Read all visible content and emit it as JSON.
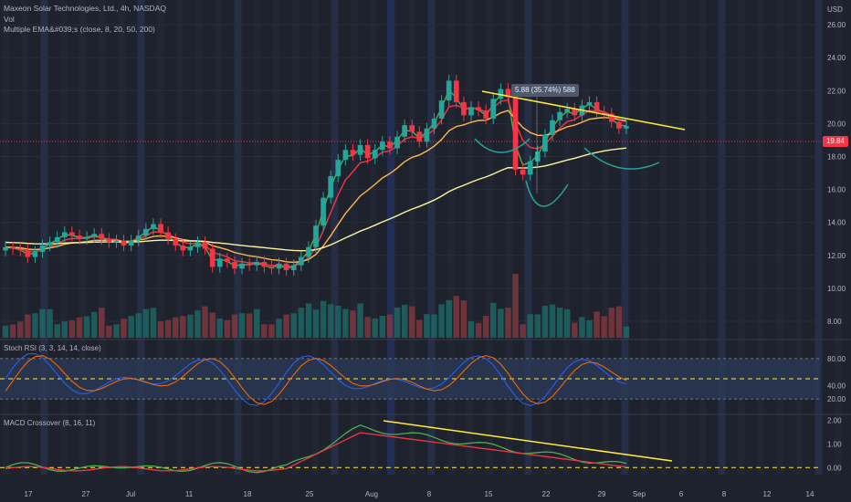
{
  "legend": {
    "title": "Maxeon Solar Technologies, Ltd., 4h, NASDAQ",
    "vol": "Vol",
    "ema": "Multiple EMA&#039;s (close, 8, 20, 50, 200)"
  },
  "panes": {
    "rsi_title": "Stoch RSI (3, 3, 14, 14, close)",
    "macd_title": "MACD Crossover (8, 16, 11)"
  },
  "currency": "USD",
  "last_price_label": "19.84",
  "callout": "5.88 (35.74%) 588",
  "colors": {
    "up": "#26a69a",
    "down": "#f23645",
    "ema8": "#4caf50",
    "ema20": "#f23645",
    "ema50": "#ffb74d",
    "ema200": "#fff59d",
    "trend": "#ffeb3b",
    "curve": "#26a69a"
  },
  "chart_data": [
    {
      "type": "candlestick",
      "title": "Maxeon Solar Technologies, Ltd., 4h, NASDAQ",
      "ylabel": "USD",
      "ylim": [
        7.0,
        27.5
      ],
      "y_ticks": [
        8.0,
        10.0,
        12.0,
        14.0,
        16.0,
        18.0,
        20.0,
        22.0,
        24.0,
        26.0
      ],
      "y_tick_labels": [
        "8.00",
        "10.00",
        "12.00",
        "14.00",
        "16.00",
        "18.00",
        "20.00",
        "22.00",
        "24.00",
        "26.00"
      ],
      "x_tick_labels": [
        "17",
        "27",
        "Jul",
        "11",
        "18",
        "25",
        "Aug",
        "8",
        "15",
        "22",
        "29",
        "Sep",
        "6",
        "8",
        "12",
        "14"
      ],
      "last_price": 19.84,
      "closes": [
        12.5,
        12.4,
        12.3,
        11.9,
        12.2,
        12.6,
        12.8,
        13.1,
        13.4,
        13.2,
        13.0,
        13.1,
        13.3,
        13.0,
        12.8,
        12.9,
        12.6,
        12.9,
        13.2,
        13.6,
        13.9,
        13.4,
        13.0,
        12.6,
        12.3,
        12.5,
        12.8,
        12.4,
        11.3,
        11.8,
        11.6,
        11.2,
        11.5,
        11.4,
        11.6,
        11.3,
        11.2,
        11.5,
        11.1,
        11.4,
        11.9,
        12.5,
        13.8,
        15.5,
        16.8,
        17.8,
        18.4,
        18.1,
        18.7,
        17.9,
        18.4,
        18.9,
        18.5,
        19.2,
        19.9,
        19.5,
        18.9,
        19.7,
        20.3,
        21.4,
        22.6,
        21.3,
        20.5,
        21.0,
        20.8,
        20.3,
        21.5,
        22.1,
        21.6,
        17.2,
        16.9,
        17.7,
        18.3,
        19.3,
        20.2,
        20.7,
        20.9,
        20.5,
        21.1,
        21.3,
        20.7,
        20.6,
        20.1,
        19.7,
        19.84
      ],
      "series": [
        {
          "name": "EMA 8"
        },
        {
          "name": "EMA 20"
        },
        {
          "name": "EMA 50"
        },
        {
          "name": "EMA 200"
        }
      ]
    },
    {
      "type": "line",
      "title": "Stoch RSI (3, 3, 14, 14, close)",
      "ylim": [
        0,
        100
      ],
      "y_ticks": [
        20,
        40,
        80
      ],
      "y_tick_labels": [
        "20.00",
        "40.00",
        "80.00"
      ]
    },
    {
      "type": "line",
      "title": "MACD Crossover (8, 16, 11)",
      "ylim": [
        -0.3,
        2.1
      ],
      "y_ticks": [
        0,
        1,
        2
      ],
      "y_tick_labels": [
        "0.00",
        "1.00",
        "2.00"
      ]
    }
  ]
}
